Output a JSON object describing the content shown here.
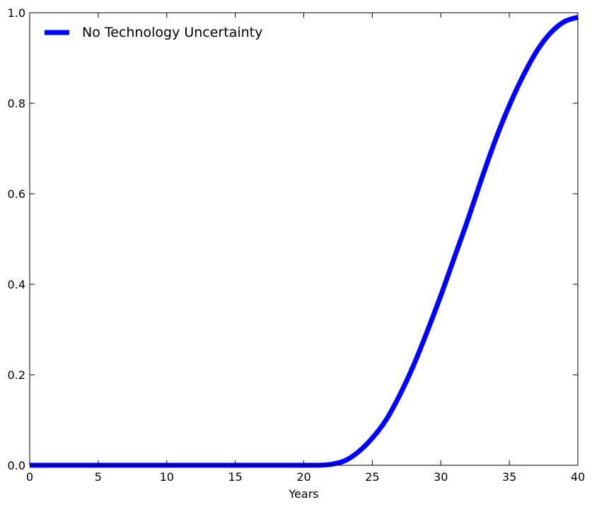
{
  "chart_data": {
    "type": "line",
    "title": "",
    "xlabel": "Years",
    "ylabel": "",
    "xlim": [
      0,
      40
    ],
    "ylim": [
      0.0,
      1.0
    ],
    "xticks": [
      0,
      5,
      10,
      15,
      20,
      25,
      30,
      35,
      40
    ],
    "xtick_labels": [
      "0",
      "5",
      "10",
      "15",
      "20",
      "25",
      "30",
      "35",
      "40"
    ],
    "yticks": [
      0.0,
      0.2,
      0.4,
      0.6,
      0.8,
      1.0
    ],
    "ytick_labels": [
      "0.0",
      "0.2",
      "0.4",
      "0.6",
      "0.8",
      "1.0"
    ],
    "grid": false,
    "legend_position": "top-left",
    "series": [
      {
        "name": "No Technology Uncertainty",
        "color": "#0000ff",
        "x": [
          0,
          5,
          10,
          15,
          20,
          21,
          22,
          23,
          24,
          25,
          26,
          27,
          28,
          29,
          30,
          31,
          32,
          33,
          34,
          35,
          36,
          37,
          38,
          39,
          40
        ],
        "y": [
          0.0,
          0.0,
          0.0,
          0.0,
          0.0,
          0.0,
          0.002,
          0.01,
          0.03,
          0.06,
          0.1,
          0.155,
          0.22,
          0.295,
          0.375,
          0.46,
          0.545,
          0.635,
          0.72,
          0.795,
          0.86,
          0.915,
          0.955,
          0.98,
          0.99
        ]
      }
    ]
  }
}
